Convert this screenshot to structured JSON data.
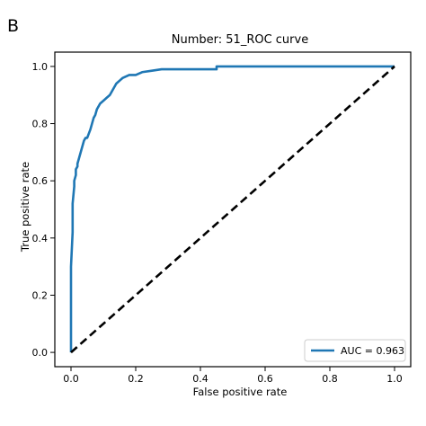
{
  "panel_label": "B",
  "chart_data": {
    "type": "line",
    "title": "Number: 51_ROC curve",
    "xlabel": "False positive rate",
    "ylabel": "True positive rate",
    "xlim": [
      -0.05,
      1.05
    ],
    "ylim": [
      -0.05,
      1.05
    ],
    "xticks": [
      0.0,
      0.2,
      0.4,
      0.6,
      0.8,
      1.0
    ],
    "yticks": [
      0.0,
      0.2,
      0.4,
      0.6,
      0.8,
      1.0
    ],
    "xtick_labels": [
      "0.0",
      "0.2",
      "0.4",
      "0.6",
      "0.8",
      "1.0"
    ],
    "ytick_labels": [
      "0.0",
      "0.2",
      "0.4",
      "0.6",
      "0.8",
      "1.0"
    ],
    "grid": false,
    "legend_position": "lower right",
    "series": [
      {
        "name": "AUC = 0.963",
        "color": "#1f77b4",
        "style": "solid",
        "x": [
          0.0,
          0.0,
          0.005,
          0.005,
          0.01,
          0.01,
          0.015,
          0.015,
          0.02,
          0.02,
          0.025,
          0.03,
          0.035,
          0.04,
          0.045,
          0.05,
          0.06,
          0.065,
          0.07,
          0.075,
          0.08,
          0.09,
          0.1,
          0.11,
          0.12,
          0.13,
          0.14,
          0.15,
          0.16,
          0.18,
          0.2,
          0.22,
          0.25,
          0.28,
          0.35,
          0.45,
          0.45,
          0.6,
          0.8,
          1.0
        ],
        "y": [
          0.0,
          0.3,
          0.42,
          0.52,
          0.58,
          0.6,
          0.62,
          0.64,
          0.65,
          0.66,
          0.68,
          0.7,
          0.72,
          0.74,
          0.75,
          0.75,
          0.78,
          0.8,
          0.82,
          0.83,
          0.85,
          0.87,
          0.88,
          0.89,
          0.9,
          0.92,
          0.94,
          0.95,
          0.96,
          0.97,
          0.97,
          0.98,
          0.985,
          0.99,
          0.99,
          0.99,
          1.0,
          1.0,
          1.0,
          1.0
        ]
      },
      {
        "color": "#000000",
        "style": "dashed",
        "x": [
          0.0,
          1.0
        ],
        "y": [
          0.0,
          1.0
        ]
      }
    ]
  }
}
